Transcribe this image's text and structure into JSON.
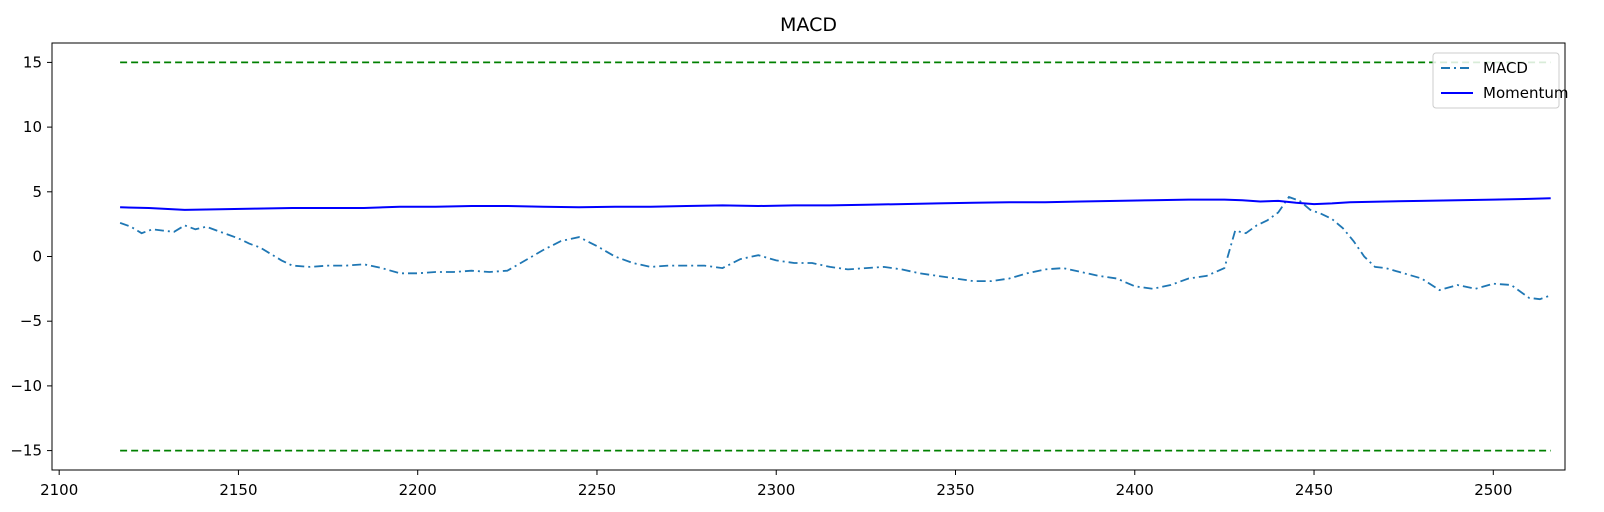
{
  "chart_data": {
    "type": "line",
    "title": "MACD",
    "xlabel": "",
    "ylabel": "",
    "xlim": [
      2098,
      2520
    ],
    "ylim": [
      -16.5,
      16.5
    ],
    "xticks": [
      2100,
      2150,
      2200,
      2250,
      2300,
      2350,
      2400,
      2450,
      2500
    ],
    "yticks": [
      15,
      10,
      5,
      0,
      -5,
      -10,
      -15
    ],
    "grid": false,
    "legend_position": "top-right",
    "series": [
      {
        "name": "MACD",
        "style": "dashdot",
        "color": "#1f77b4",
        "x": [
          2117,
          2120,
          2123,
          2126,
          2129,
          2132,
          2135,
          2138,
          2141,
          2144,
          2147,
          2150,
          2153,
          2156,
          2159,
          2162,
          2165,
          2170,
          2175,
          2180,
          2185,
          2190,
          2195,
          2200,
          2205,
          2210,
          2215,
          2220,
          2225,
          2230,
          2235,
          2240,
          2245,
          2250,
          2255,
          2260,
          2265,
          2270,
          2275,
          2280,
          2285,
          2290,
          2295,
          2300,
          2305,
          2310,
          2315,
          2320,
          2325,
          2330,
          2335,
          2340,
          2345,
          2350,
          2355,
          2360,
          2365,
          2370,
          2375,
          2380,
          2385,
          2390,
          2395,
          2400,
          2405,
          2410,
          2415,
          2420,
          2425,
          2428,
          2431,
          2434,
          2437,
          2440,
          2443,
          2446,
          2449,
          2452,
          2455,
          2458,
          2461,
          2464,
          2467,
          2470,
          2475,
          2480,
          2485,
          2490,
          2495,
          2500,
          2505,
          2510,
          2513,
          2516
        ],
        "y": [
          2.6,
          2.3,
          1.8,
          2.1,
          2.0,
          1.9,
          2.4,
          2.1,
          2.3,
          2.0,
          1.7,
          1.4,
          1.0,
          0.7,
          0.2,
          -0.3,
          -0.7,
          -0.8,
          -0.7,
          -0.7,
          -0.6,
          -0.9,
          -1.3,
          -1.3,
          -1.2,
          -1.2,
          -1.1,
          -1.2,
          -1.1,
          -0.3,
          0.5,
          1.2,
          1.5,
          0.8,
          0.0,
          -0.5,
          -0.8,
          -0.7,
          -0.7,
          -0.7,
          -0.9,
          -0.2,
          0.1,
          -0.3,
          -0.5,
          -0.5,
          -0.8,
          -1.0,
          -0.9,
          -0.8,
          -1.0,
          -1.3,
          -1.5,
          -1.7,
          -1.9,
          -1.9,
          -1.7,
          -1.3,
          -1.0,
          -0.9,
          -1.2,
          -1.5,
          -1.7,
          -2.3,
          -2.5,
          -2.2,
          -1.7,
          -1.5,
          -0.9,
          2.0,
          1.8,
          2.4,
          2.8,
          3.4,
          4.6,
          4.3,
          3.6,
          3.3,
          2.9,
          2.2,
          1.2,
          0.0,
          -0.8,
          -0.9,
          -1.3,
          -1.7,
          -2.6,
          -2.2,
          -2.5,
          -2.1,
          -2.2,
          -3.2,
          -3.3,
          -3.0
        ]
      },
      {
        "name": "Momentum",
        "style": "solid",
        "color": "#0000ff",
        "x": [
          2117,
          2125,
          2135,
          2145,
          2155,
          2165,
          2175,
          2185,
          2195,
          2205,
          2215,
          2225,
          2235,
          2245,
          2255,
          2265,
          2275,
          2285,
          2295,
          2305,
          2315,
          2325,
          2335,
          2345,
          2355,
          2365,
          2375,
          2385,
          2395,
          2405,
          2415,
          2425,
          2430,
          2435,
          2440,
          2445,
          2450,
          2455,
          2460,
          2470,
          2480,
          2490,
          2500,
          2510,
          2516
        ],
        "y": [
          3.8,
          3.75,
          3.6,
          3.65,
          3.7,
          3.75,
          3.75,
          3.75,
          3.85,
          3.85,
          3.9,
          3.9,
          3.85,
          3.8,
          3.85,
          3.85,
          3.9,
          3.95,
          3.9,
          3.95,
          3.95,
          4.0,
          4.05,
          4.1,
          4.15,
          4.2,
          4.2,
          4.25,
          4.3,
          4.35,
          4.4,
          4.4,
          4.35,
          4.25,
          4.3,
          4.15,
          4.05,
          4.1,
          4.2,
          4.25,
          4.3,
          4.35,
          4.4,
          4.45,
          4.5
        ]
      },
      {
        "name": "",
        "style": "dashed",
        "color": "#008000",
        "x": [
          2117,
          2516
        ],
        "y": [
          15,
          15
        ]
      },
      {
        "name": "",
        "style": "dashed",
        "color": "#008000",
        "x": [
          2117,
          2516
        ],
        "y": [
          -15,
          -15
        ]
      }
    ]
  }
}
